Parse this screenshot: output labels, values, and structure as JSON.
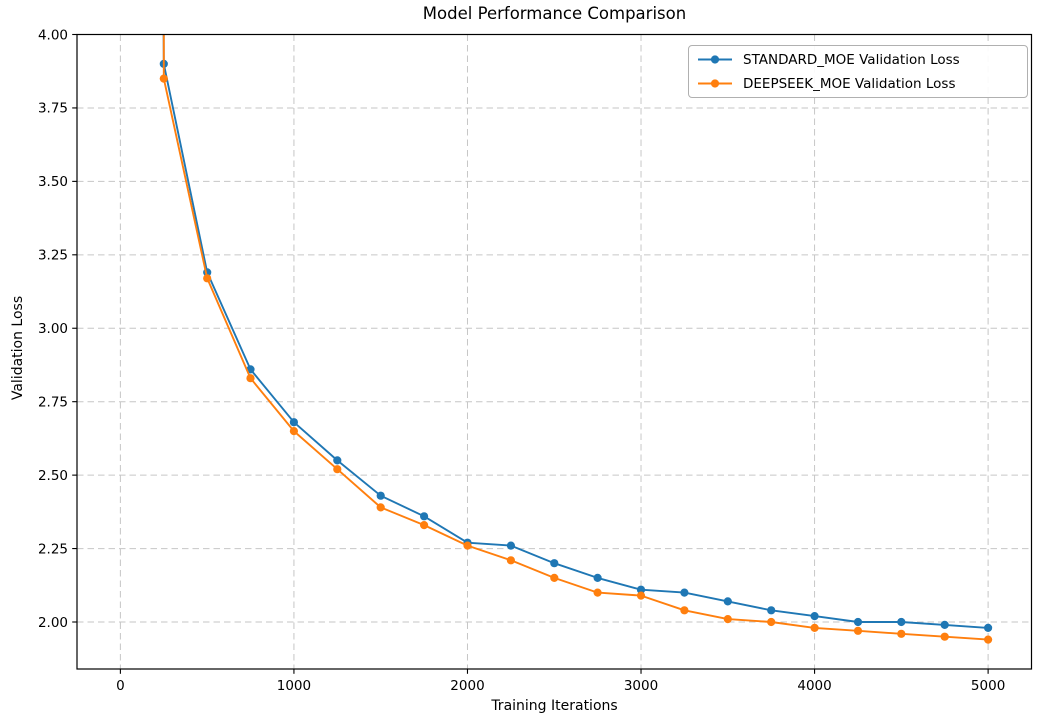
{
  "chart_data": {
    "type": "line",
    "title": "Model Performance Comparison",
    "xlabel": "Training Iterations",
    "ylabel": "Validation Loss",
    "xlim": [
      -250,
      5250
    ],
    "ylim": [
      1.84,
      4.0
    ],
    "x_ticks": [
      0,
      1000,
      2000,
      3000,
      4000,
      5000
    ],
    "x_tick_labels": [
      "0",
      "1000",
      "2000",
      "3000",
      "4000",
      "5000"
    ],
    "y_ticks": [
      2.0,
      2.25,
      2.5,
      2.75,
      3.0,
      3.25,
      3.5,
      3.75,
      4.0
    ],
    "y_tick_labels": [
      "2.00",
      "2.25",
      "2.50",
      "2.75",
      "3.00",
      "3.25",
      "3.50",
      "3.75",
      "4.00"
    ],
    "grid": true,
    "grid_linestyle": "dashed",
    "legend_position": "upper right",
    "x": [
      250,
      500,
      750,
      1000,
      1250,
      1500,
      1750,
      2000,
      2250,
      2500,
      2750,
      3000,
      3250,
      3500,
      3750,
      4000,
      4250,
      4500,
      4750,
      5000
    ],
    "series": [
      {
        "name": "STANDARD_MOE Validation Loss",
        "color": "#1f77b4",
        "marker": "circle",
        "enters_top_at_x": 249,
        "values": [
          3.9,
          3.19,
          2.86,
          2.68,
          2.55,
          2.43,
          2.36,
          2.27,
          2.26,
          2.2,
          2.15,
          2.11,
          2.1,
          2.07,
          2.04,
          2.02,
          2.0,
          2.0,
          1.99,
          1.98
        ]
      },
      {
        "name": "DEEPSEEK_MOE Validation Loss",
        "color": "#ff7f0e",
        "marker": "circle",
        "enters_top_at_x": 250,
        "values": [
          3.85,
          3.17,
          2.83,
          2.65,
          2.52,
          2.39,
          2.33,
          2.26,
          2.21,
          2.15,
          2.1,
          2.09,
          2.04,
          2.01,
          2.0,
          1.98,
          1.97,
          1.96,
          1.95,
          1.94
        ]
      }
    ],
    "colors": {
      "background": "#ffffff",
      "grid": "#c6c6c6",
      "spines": "#000000",
      "text": "#000000",
      "legend_border": "#b0b0b0"
    }
  }
}
